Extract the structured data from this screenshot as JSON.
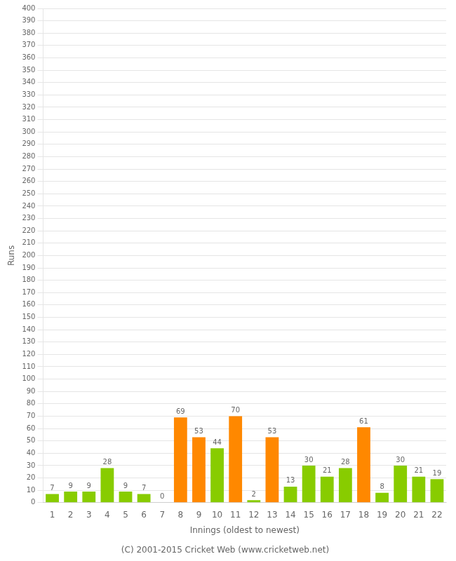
{
  "chart_data": {
    "type": "bar",
    "categories": [
      1,
      2,
      3,
      4,
      5,
      6,
      7,
      8,
      9,
      10,
      11,
      12,
      13,
      14,
      15,
      16,
      17,
      18,
      19,
      20,
      21,
      22
    ],
    "values": [
      7,
      9,
      9,
      28,
      9,
      7,
      0,
      69,
      53,
      44,
      70,
      2,
      53,
      13,
      30,
      21,
      28,
      61,
      8,
      30,
      21,
      19
    ],
    "colors": [
      "#88cc00",
      "#88cc00",
      "#88cc00",
      "#88cc00",
      "#88cc00",
      "#88cc00",
      "#88cc00",
      "#ff8800",
      "#ff8800",
      "#88cc00",
      "#ff8800",
      "#88cc00",
      "#ff8800",
      "#88cc00",
      "#88cc00",
      "#88cc00",
      "#88cc00",
      "#ff8800",
      "#88cc00",
      "#88cc00",
      "#88cc00",
      "#88cc00"
    ],
    "xlabel": "Innings (oldest to newest)",
    "ylabel": "Runs",
    "ylim": [
      0,
      400
    ],
    "yticks": [
      0,
      10,
      20,
      30,
      40,
      50,
      60,
      70,
      80,
      90,
      100,
      110,
      120,
      130,
      140,
      150,
      160,
      170,
      180,
      190,
      200,
      210,
      220,
      230,
      240,
      250,
      260,
      270,
      280,
      290,
      300,
      310,
      320,
      330,
      340,
      350,
      360,
      370,
      380,
      390,
      400
    ],
    "grid": "y",
    "data_labels": true,
    "annotations": [
      "(C) 2001-2015 Cricket Web (www.cricketweb.net)"
    ]
  }
}
